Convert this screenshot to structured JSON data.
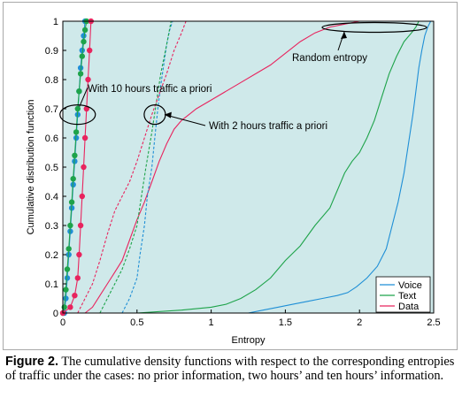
{
  "chart_data": {
    "type": "line",
    "title": "",
    "xlabel": "Entropy",
    "ylabel": "Cumulative distribution function",
    "xlim": [
      0,
      2.5
    ],
    "ylim": [
      0,
      1
    ],
    "xticks": [
      0,
      0.5,
      1,
      1.5,
      2,
      2.5
    ],
    "yticks": [
      0,
      0.1,
      0.2,
      0.3,
      0.4,
      0.5,
      0.6,
      0.7,
      0.8,
      0.9,
      1
    ],
    "xtick_labels": [
      "0",
      "0.5",
      "1",
      "1.5",
      "2",
      "2.5"
    ],
    "ytick_labels": [
      "0",
      "0.1",
      "0.2",
      "0.3",
      "0.4",
      "0.5",
      "0.6",
      "0.7",
      "0.8",
      "0.9",
      "1"
    ],
    "grid": false,
    "background_color": "#cfe9ea",
    "legend_position": "bottom-right",
    "legend": [
      "Voice",
      "Text",
      "Data"
    ],
    "series": [
      {
        "name": "Voice",
        "case": "no prior information",
        "style": "solid",
        "color": "#1f8fd6",
        "x": [
          1.11,
          1.25,
          1.35,
          1.45,
          1.55,
          1.65,
          1.75,
          1.85,
          1.92,
          1.98,
          2.05,
          2.12,
          2.18,
          2.22,
          2.26,
          2.3,
          2.33,
          2.36,
          2.38,
          2.4,
          2.42,
          2.44,
          2.46,
          2.48
        ],
        "y": [
          0,
          0,
          0.01,
          0.02,
          0.03,
          0.04,
          0.05,
          0.06,
          0.07,
          0.09,
          0.12,
          0.16,
          0.22,
          0.3,
          0.38,
          0.48,
          0.58,
          0.68,
          0.76,
          0.84,
          0.9,
          0.95,
          0.98,
          1.0
        ]
      },
      {
        "name": "Text",
        "case": "no prior information",
        "style": "solid",
        "color": "#1ea34a",
        "x": [
          0.5,
          0.8,
          1.0,
          1.1,
          1.2,
          1.3,
          1.4,
          1.5,
          1.6,
          1.7,
          1.8,
          1.85,
          1.9,
          1.95,
          2.0,
          2.05,
          2.1,
          2.15,
          2.2,
          2.25,
          2.3,
          2.35,
          2.38,
          2.4
        ],
        "y": [
          0,
          0.01,
          0.02,
          0.03,
          0.05,
          0.08,
          0.12,
          0.18,
          0.23,
          0.3,
          0.36,
          0.42,
          0.48,
          0.52,
          0.55,
          0.6,
          0.66,
          0.74,
          0.82,
          0.88,
          0.93,
          0.96,
          0.98,
          1.0
        ]
      },
      {
        "name": "Data",
        "case": "no prior information",
        "style": "solid",
        "color": "#e8245e",
        "x": [
          0.15,
          0.2,
          0.25,
          0.3,
          0.35,
          0.4,
          0.45,
          0.5,
          0.55,
          0.6,
          0.65,
          0.7,
          0.75,
          0.8,
          0.85,
          0.9,
          1.0,
          1.1,
          1.2,
          1.3,
          1.4,
          1.5,
          1.6,
          1.7,
          1.8,
          1.9,
          2.0,
          2.1,
          2.2,
          2.3
        ],
        "y": [
          0,
          0.02,
          0.06,
          0.1,
          0.14,
          0.18,
          0.25,
          0.32,
          0.38,
          0.45,
          0.52,
          0.58,
          0.63,
          0.66,
          0.68,
          0.7,
          0.73,
          0.76,
          0.79,
          0.82,
          0.85,
          0.89,
          0.93,
          0.96,
          0.98,
          0.99,
          1.0,
          1.0,
          1.0,
          1.0
        ]
      },
      {
        "name": "Voice",
        "case": "two hours' information",
        "style": "dashed",
        "color": "#1f8fd6",
        "x": [
          0.4,
          0.45,
          0.5,
          0.52,
          0.55,
          0.57,
          0.6,
          0.62,
          0.64,
          0.66,
          0.68,
          0.7,
          0.72,
          0.74
        ],
        "y": [
          0,
          0.05,
          0.12,
          0.2,
          0.3,
          0.4,
          0.5,
          0.6,
          0.7,
          0.78,
          0.85,
          0.92,
          0.97,
          1.0
        ]
      },
      {
        "name": "Text",
        "case": "two hours' information",
        "style": "dashed",
        "color": "#1ea34a",
        "x": [
          0.25,
          0.3,
          0.35,
          0.4,
          0.45,
          0.5,
          0.53,
          0.56,
          0.6,
          0.63,
          0.66,
          0.7,
          0.73
        ],
        "y": [
          0,
          0.05,
          0.1,
          0.15,
          0.22,
          0.3,
          0.4,
          0.5,
          0.62,
          0.72,
          0.82,
          0.92,
          1.0
        ]
      },
      {
        "name": "Data",
        "case": "two hours' information",
        "style": "dashed",
        "color": "#e8245e",
        "x": [
          0.1,
          0.15,
          0.2,
          0.25,
          0.3,
          0.35,
          0.4,
          0.45,
          0.5,
          0.55,
          0.6,
          0.65,
          0.7,
          0.75,
          0.8,
          0.83
        ],
        "y": [
          0,
          0.05,
          0.1,
          0.18,
          0.27,
          0.35,
          0.4,
          0.45,
          0.52,
          0.6,
          0.68,
          0.75,
          0.82,
          0.9,
          0.96,
          1.0
        ]
      },
      {
        "name": "Voice",
        "case": "ten hours' information",
        "style": "solid-markers",
        "color": "#1f8fd6",
        "x": [
          0.01,
          0.02,
          0.03,
          0.04,
          0.05,
          0.06,
          0.07,
          0.08,
          0.09,
          0.1,
          0.11,
          0.12,
          0.13,
          0.14,
          0.15
        ],
        "y": [
          0,
          0.05,
          0.12,
          0.2,
          0.28,
          0.36,
          0.44,
          0.52,
          0.6,
          0.68,
          0.76,
          0.84,
          0.9,
          0.95,
          1.0
        ]
      },
      {
        "name": "Text",
        "case": "ten hours' information",
        "style": "solid-markers",
        "color": "#1ea34a",
        "x": [
          0.0,
          0.01,
          0.02,
          0.03,
          0.04,
          0.05,
          0.06,
          0.07,
          0.08,
          0.09,
          0.1,
          0.11,
          0.12,
          0.13,
          0.14,
          0.15,
          0.16
        ],
        "y": [
          0,
          0.02,
          0.08,
          0.15,
          0.22,
          0.3,
          0.38,
          0.46,
          0.54,
          0.62,
          0.7,
          0.76,
          0.82,
          0.88,
          0.93,
          0.97,
          1.0
        ]
      },
      {
        "name": "Data",
        "case": "ten hours' information",
        "style": "solid-markers",
        "color": "#e8245e",
        "x": [
          0.0,
          0.05,
          0.08,
          0.1,
          0.11,
          0.12,
          0.13,
          0.14,
          0.15,
          0.16,
          0.17,
          0.18,
          0.19
        ],
        "y": [
          0,
          0.02,
          0.06,
          0.12,
          0.2,
          0.3,
          0.4,
          0.5,
          0.6,
          0.7,
          0.8,
          0.9,
          1.0
        ]
      }
    ],
    "annotations": [
      {
        "text": "With 10 hours traffic a priori",
        "target": [
          0.1,
          0.68
        ]
      },
      {
        "text": "With 2 hours traffic a priori",
        "target": [
          0.62,
          0.68
        ]
      },
      {
        "text": "Random entropy",
        "target": [
          2.0,
          0.985
        ]
      }
    ]
  },
  "caption": {
    "label": "Figure 2.",
    "text": "The cumulative density functions with respect to the corresponding entropies of traffic under the cases: no prior information, two hours’ and ten hours’ information."
  }
}
